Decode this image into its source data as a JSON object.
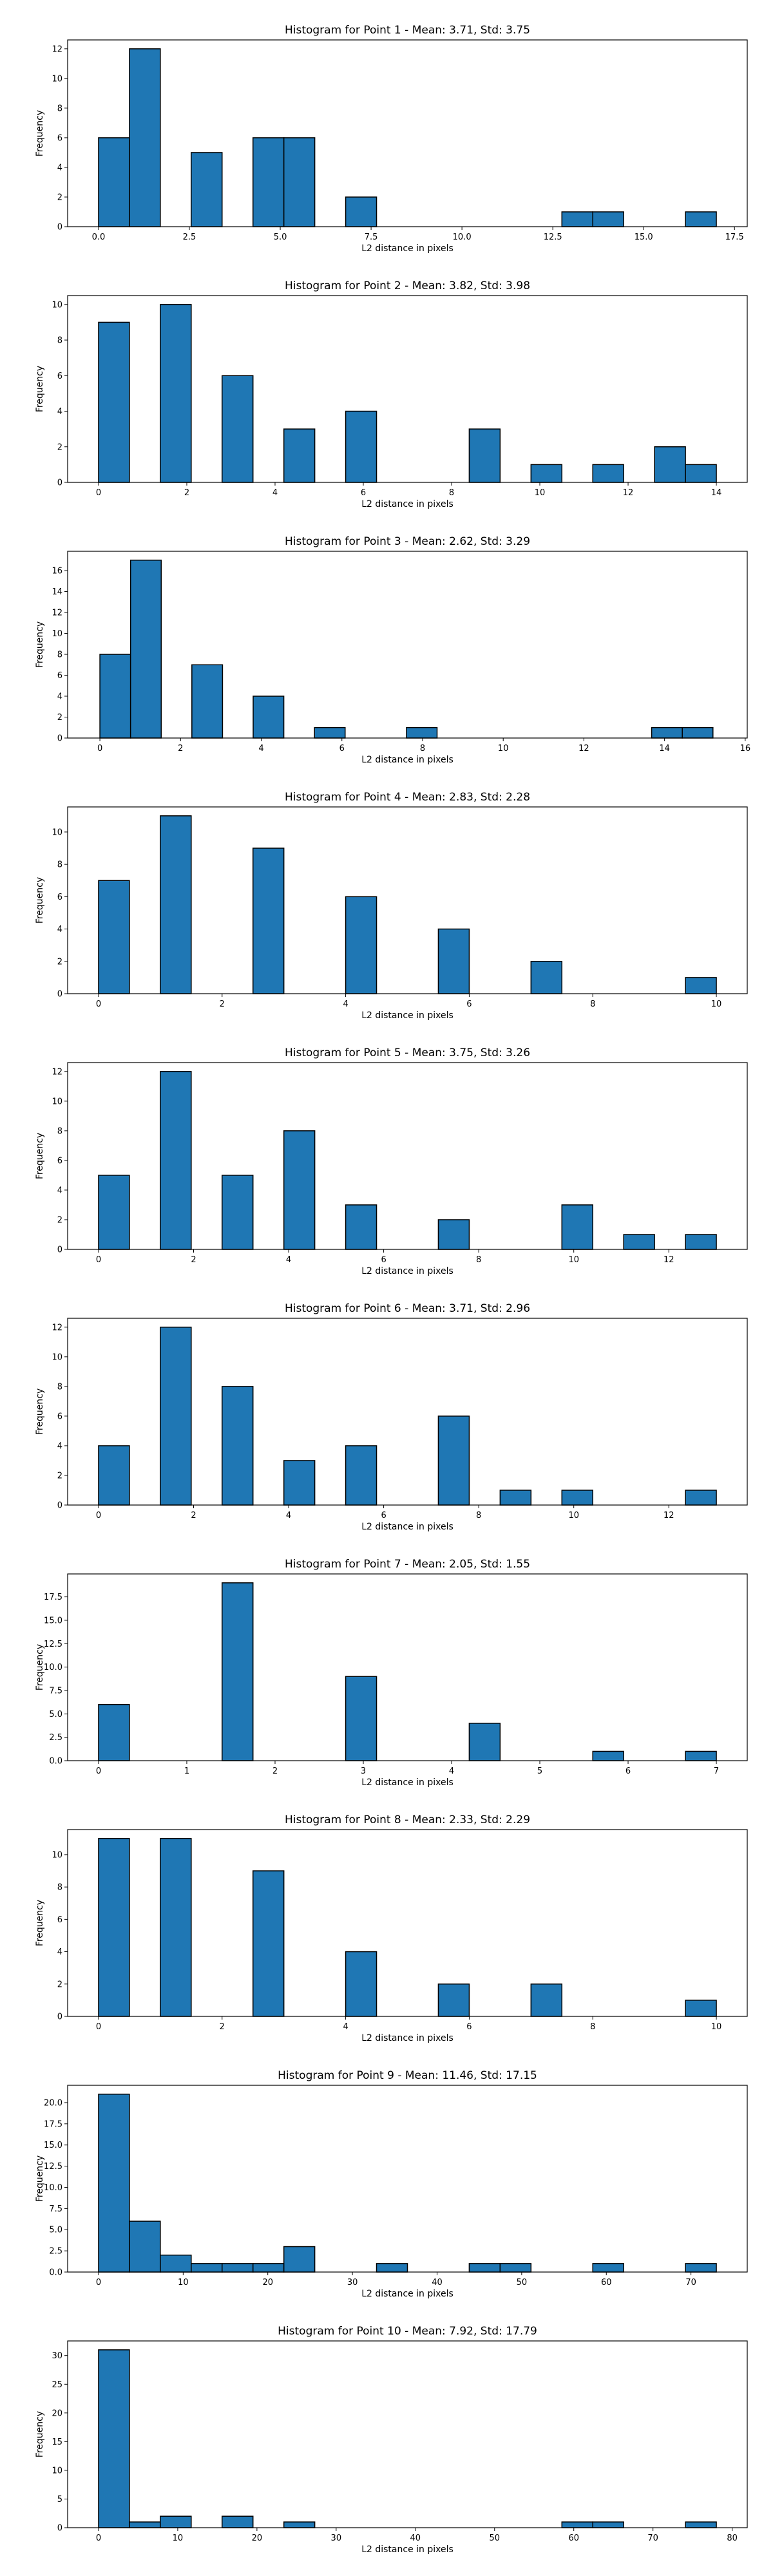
{
  "figure": {
    "background": "#ffffff",
    "bar_color": "#1f77b4",
    "edge_color": "#000000"
  },
  "chart_data": [
    {
      "type": "bar",
      "title": "Histogram for Point 1 - Mean: 3.71, Std: 3.75",
      "xlabel": "L2 distance in pixels",
      "ylabel": "Frequency",
      "xlim": [
        -0.85,
        17.85
      ],
      "ylim": [
        0,
        12.6
      ],
      "xticks": [
        0,
        2.5,
        5,
        7.5,
        10,
        12.5,
        15,
        17.5
      ],
      "xtick_labels": [
        "0.0",
        "2.5",
        "5.0",
        "7.5",
        "10.0",
        "12.5",
        "15.0",
        "17.5"
      ],
      "yticks": [
        0,
        2,
        4,
        6,
        8,
        10,
        12
      ],
      "ytick_labels": [
        "0",
        "2",
        "4",
        "6",
        "8",
        "10",
        "12"
      ],
      "bin_edges": [
        0,
        0.85,
        1.7,
        2.55,
        3.4,
        4.25,
        5.1,
        5.95,
        6.8,
        7.65,
        8.5,
        9.35,
        10.2,
        11.05,
        11.9,
        12.75,
        13.6,
        14.45,
        15.3,
        16.15,
        17.0
      ],
      "counts": [
        6,
        12,
        0,
        5,
        0,
        6,
        6,
        0,
        2,
        0,
        0,
        0,
        0,
        0,
        0,
        1,
        1,
        0,
        0,
        1
      ]
    },
    {
      "type": "bar",
      "title": "Histogram for Point 2 - Mean: 3.82, Std: 3.98",
      "xlabel": "L2 distance in pixels",
      "ylabel": "Frequency",
      "xlim": [
        -0.7,
        14.7
      ],
      "ylim": [
        0,
        10.5
      ],
      "xticks": [
        0,
        2,
        4,
        6,
        8,
        10,
        12,
        14
      ],
      "xtick_labels": [
        "0",
        "2",
        "4",
        "6",
        "8",
        "10",
        "12",
        "14"
      ],
      "yticks": [
        0,
        2,
        4,
        6,
        8,
        10
      ],
      "ytick_labels": [
        "0",
        "2",
        "4",
        "6",
        "8",
        "10"
      ],
      "bin_edges": [
        0,
        0.7,
        1.4,
        2.1,
        2.8,
        3.5,
        4.2,
        4.9,
        5.6,
        6.3,
        7.0,
        7.7,
        8.4,
        9.1,
        9.8,
        10.5,
        11.2,
        11.9,
        12.6,
        13.3,
        14.0
      ],
      "counts": [
        9,
        0,
        10,
        0,
        6,
        0,
        3,
        0,
        4,
        0,
        0,
        0,
        3,
        0,
        1,
        0,
        1,
        0,
        2,
        1
      ]
    },
    {
      "type": "bar",
      "title": "Histogram for Point 3 - Mean: 2.62, Std: 3.29",
      "xlabel": "L2 distance in pixels",
      "ylabel": "Frequency",
      "xlim": [
        -0.8,
        16.05
      ],
      "ylim": [
        0,
        17.85
      ],
      "xticks": [
        0,
        2,
        4,
        6,
        8,
        10,
        12,
        14,
        16
      ],
      "xtick_labels": [
        "0",
        "2",
        "4",
        "6",
        "8",
        "10",
        "12",
        "14",
        "16"
      ],
      "yticks": [
        0,
        2,
        4,
        6,
        8,
        10,
        12,
        14,
        16
      ],
      "ytick_labels": [
        "0",
        "2",
        "4",
        "6",
        "8",
        "10",
        "12",
        "14",
        "16"
      ],
      "bin_edges": [
        0,
        0.76,
        1.52,
        2.28,
        3.04,
        3.8,
        4.56,
        5.32,
        6.08,
        6.84,
        7.6,
        8.36,
        9.12,
        9.88,
        10.64,
        11.4,
        12.16,
        12.92,
        13.68,
        14.44,
        15.2
      ],
      "counts": [
        8,
        17,
        0,
        7,
        0,
        4,
        0,
        1,
        0,
        0,
        1,
        0,
        0,
        0,
        0,
        0,
        0,
        0,
        1,
        1
      ]
    },
    {
      "type": "bar",
      "title": "Histogram for Point 4 - Mean: 2.83, Std: 2.28",
      "xlabel": "L2 distance in pixels",
      "ylabel": "Frequency",
      "xlim": [
        -0.5,
        10.5
      ],
      "ylim": [
        0,
        11.55
      ],
      "xticks": [
        0,
        2,
        4,
        6,
        8,
        10
      ],
      "xtick_labels": [
        "0",
        "2",
        "4",
        "6",
        "8",
        "10"
      ],
      "yticks": [
        0,
        2,
        4,
        6,
        8,
        10
      ],
      "ytick_labels": [
        "0",
        "2",
        "4",
        "6",
        "8",
        "10"
      ],
      "bin_edges": [
        0,
        0.5,
        1.0,
        1.5,
        2.0,
        2.5,
        3.0,
        3.5,
        4.0,
        4.5,
        5.0,
        5.5,
        6.0,
        6.5,
        7.0,
        7.5,
        8.0,
        8.5,
        9.0,
        9.5,
        10.0
      ],
      "counts": [
        7,
        0,
        11,
        0,
        0,
        9,
        0,
        0,
        6,
        0,
        0,
        4,
        0,
        0,
        2,
        0,
        0,
        0,
        0,
        1
      ]
    },
    {
      "type": "bar",
      "title": "Histogram for Point 5 - Mean: 3.75, Std: 3.26",
      "xlabel": "L2 distance in pixels",
      "ylabel": "Frequency",
      "xlim": [
        -0.65,
        13.65
      ],
      "ylim": [
        0,
        12.6
      ],
      "xticks": [
        0,
        2,
        4,
        6,
        8,
        10,
        12
      ],
      "xtick_labels": [
        "0",
        "2",
        "4",
        "6",
        "8",
        "10",
        "12"
      ],
      "yticks": [
        0,
        2,
        4,
        6,
        8,
        10,
        12
      ],
      "ytick_labels": [
        "0",
        "2",
        "4",
        "6",
        "8",
        "10",
        "12"
      ],
      "bin_edges": [
        0,
        0.65,
        1.3,
        1.95,
        2.6,
        3.25,
        3.9,
        4.55,
        5.2,
        5.85,
        6.5,
        7.15,
        7.8,
        8.45,
        9.1,
        9.75,
        10.4,
        11.05,
        11.7,
        12.35,
        13.0
      ],
      "counts": [
        5,
        0,
        12,
        0,
        5,
        0,
        8,
        0,
        3,
        0,
        0,
        2,
        0,
        0,
        0,
        3,
        0,
        1,
        0,
        1
      ]
    },
    {
      "type": "bar",
      "title": "Histogram for Point 6 - Mean: 3.71, Std: 2.96",
      "xlabel": "L2 distance in pixels",
      "ylabel": "Frequency",
      "xlim": [
        -0.65,
        13.65
      ],
      "ylim": [
        0,
        12.6
      ],
      "xticks": [
        0,
        2,
        4,
        6,
        8,
        10,
        12
      ],
      "xtick_labels": [
        "0",
        "2",
        "4",
        "6",
        "8",
        "10",
        "12"
      ],
      "yticks": [
        0,
        2,
        4,
        6,
        8,
        10,
        12
      ],
      "ytick_labels": [
        "0",
        "2",
        "4",
        "6",
        "8",
        "10",
        "12"
      ],
      "bin_edges": [
        0,
        0.65,
        1.3,
        1.95,
        2.6,
        3.25,
        3.9,
        4.55,
        5.2,
        5.85,
        6.5,
        7.15,
        7.8,
        8.45,
        9.1,
        9.75,
        10.4,
        11.05,
        11.7,
        12.35,
        13.0
      ],
      "counts": [
        4,
        0,
        12,
        0,
        8,
        0,
        3,
        0,
        4,
        0,
        0,
        6,
        0,
        1,
        0,
        1,
        0,
        0,
        0,
        1
      ]
    },
    {
      "type": "bar",
      "title": "Histogram for Point 7 - Mean: 2.05, Std: 1.55",
      "xlabel": "L2 distance in pixels",
      "ylabel": "Frequency",
      "xlim": [
        -0.35,
        7.35
      ],
      "ylim": [
        0,
        19.95
      ],
      "xticks": [
        0,
        1,
        2,
        3,
        4,
        5,
        6,
        7
      ],
      "xtick_labels": [
        "0",
        "1",
        "2",
        "3",
        "4",
        "5",
        "6",
        "7"
      ],
      "yticks": [
        0,
        2.5,
        5,
        7.5,
        10,
        12.5,
        15,
        17.5
      ],
      "ytick_labels": [
        "0.0",
        "2.5",
        "5.0",
        "7.5",
        "10.0",
        "12.5",
        "15.0",
        "17.5"
      ],
      "bin_edges": [
        0,
        0.35,
        0.7,
        1.05,
        1.4,
        1.75,
        2.1,
        2.45,
        2.8,
        3.15,
        3.5,
        3.85,
        4.2,
        4.55,
        4.9,
        5.25,
        5.6,
        5.95,
        6.3,
        6.65,
        7.0
      ],
      "counts": [
        6,
        0,
        0,
        0,
        19,
        0,
        0,
        0,
        9,
        0,
        0,
        0,
        4,
        0,
        0,
        0,
        1,
        0,
        0,
        1
      ]
    },
    {
      "type": "bar",
      "title": "Histogram for Point 8 - Mean: 2.33, Std: 2.29",
      "xlabel": "L2 distance in pixels",
      "ylabel": "Frequency",
      "xlim": [
        -0.5,
        10.5
      ],
      "ylim": [
        0,
        11.55
      ],
      "xticks": [
        0,
        2,
        4,
        6,
        8,
        10
      ],
      "xtick_labels": [
        "0",
        "2",
        "4",
        "6",
        "8",
        "10"
      ],
      "yticks": [
        0,
        2,
        4,
        6,
        8,
        10
      ],
      "ytick_labels": [
        "0",
        "2",
        "4",
        "6",
        "8",
        "10"
      ],
      "bin_edges": [
        0,
        0.5,
        1.0,
        1.5,
        2.0,
        2.5,
        3.0,
        3.5,
        4.0,
        4.5,
        5.0,
        5.5,
        6.0,
        6.5,
        7.0,
        7.5,
        8.0,
        8.5,
        9.0,
        9.5,
        10.0
      ],
      "counts": [
        11,
        0,
        11,
        0,
        0,
        9,
        0,
        0,
        4,
        0,
        0,
        2,
        0,
        0,
        2,
        0,
        0,
        0,
        0,
        1
      ]
    },
    {
      "type": "bar",
      "title": "Histogram for Point 9 - Mean: 11.46, Std: 17.15",
      "xlabel": "L2 distance in pixels",
      "ylabel": "Frequency",
      "xlim": [
        -3.65,
        76.65
      ],
      "ylim": [
        0,
        22.05
      ],
      "xticks": [
        0,
        10,
        20,
        30,
        40,
        50,
        60,
        70
      ],
      "xtick_labels": [
        "0",
        "10",
        "20",
        "30",
        "40",
        "50",
        "60",
        "70"
      ],
      "yticks": [
        0,
        2.5,
        5,
        7.5,
        10,
        12.5,
        15,
        17.5,
        20
      ],
      "ytick_labels": [
        "0.0",
        "2.5",
        "5.0",
        "7.5",
        "10.0",
        "12.5",
        "15.0",
        "17.5",
        "20.0"
      ],
      "bin_edges": [
        0,
        3.65,
        7.3,
        10.95,
        14.6,
        18.25,
        21.9,
        25.55,
        29.2,
        32.85,
        36.5,
        40.15,
        43.8,
        47.45,
        51.1,
        54.75,
        58.4,
        62.05,
        65.7,
        69.35,
        73.0
      ],
      "counts": [
        21,
        6,
        2,
        1,
        1,
        1,
        3,
        0,
        0,
        1,
        0,
        0,
        1,
        1,
        0,
        0,
        1,
        0,
        0,
        1
      ]
    },
    {
      "type": "bar",
      "title": "Histogram for Point 10 - Mean: 7.92, Std: 17.79",
      "xlabel": "L2 distance in pixels",
      "ylabel": "Frequency",
      "xlim": [
        -3.9,
        81.9
      ],
      "ylim": [
        0,
        32.55
      ],
      "xticks": [
        0,
        10,
        20,
        30,
        40,
        50,
        60,
        70,
        80
      ],
      "xtick_labels": [
        "0",
        "10",
        "20",
        "30",
        "40",
        "50",
        "60",
        "70",
        "80"
      ],
      "yticks": [
        0,
        5,
        10,
        15,
        20,
        25,
        30
      ],
      "ytick_labels": [
        "0",
        "5",
        "10",
        "15",
        "20",
        "25",
        "30"
      ],
      "bin_edges": [
        0,
        3.9,
        7.8,
        11.7,
        15.6,
        19.5,
        23.4,
        27.3,
        31.2,
        35.1,
        39.0,
        42.9,
        46.8,
        50.7,
        54.6,
        58.5,
        62.4,
        66.3,
        70.2,
        74.1,
        78.0
      ],
      "counts": [
        31,
        1,
        2,
        0,
        2,
        0,
        1,
        0,
        0,
        0,
        0,
        0,
        0,
        0,
        0,
        1,
        1,
        0,
        0,
        1
      ]
    }
  ]
}
